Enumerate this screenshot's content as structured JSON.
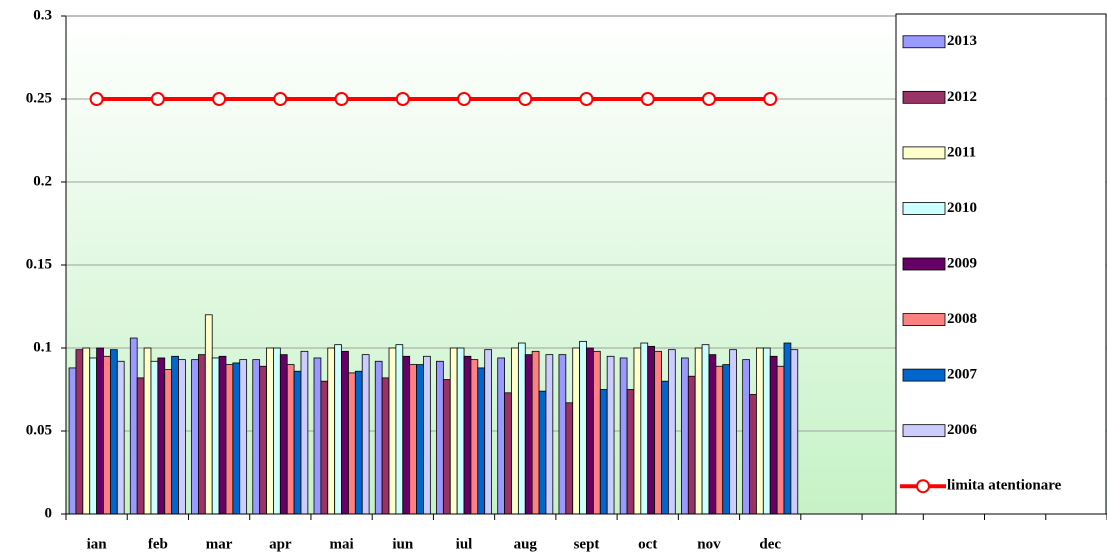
{
  "chart_data": {
    "type": "bar",
    "categories": [
      "ian",
      "feb",
      "mar",
      "apr",
      "mai",
      "iun",
      "iul",
      "aug",
      "sept",
      "oct",
      "nov",
      "dec",
      null,
      null,
      null,
      null,
      null
    ],
    "ylim": [
      0,
      0.3
    ],
    "yticks": [
      0,
      0.05,
      0.1,
      0.15,
      0.2,
      0.25,
      0.3
    ],
    "grid": true,
    "legend": "right",
    "series": [
      {
        "name": "2013",
        "color": "#9999ff",
        "values": [
          0.088,
          0.106,
          0.093,
          0.093,
          0.094,
          0.092,
          0.092,
          0.094,
          0.096,
          0.094,
          0.094,
          0.093,
          null,
          null,
          null,
          null,
          null
        ]
      },
      {
        "name": "2012",
        "color": "#993366",
        "values": [
          0.099,
          0.082,
          0.096,
          0.089,
          0.08,
          0.082,
          0.081,
          0.073,
          0.067,
          0.075,
          0.083,
          0.072,
          null,
          null,
          null,
          null,
          null
        ]
      },
      {
        "name": "2011",
        "color": "#ffffcc",
        "values": [
          0.1,
          0.1,
          0.12,
          0.1,
          0.1,
          0.1,
          0.1,
          0.1,
          0.1,
          0.1,
          0.1,
          0.1,
          null,
          null,
          null,
          null,
          null
        ]
      },
      {
        "name": "2010",
        "color": "#ccffff",
        "values": [
          0.094,
          0.092,
          0.094,
          0.1,
          0.102,
          0.102,
          0.1,
          0.103,
          0.104,
          0.103,
          0.102,
          0.1,
          null,
          null,
          null,
          null,
          null
        ]
      },
      {
        "name": "2009",
        "color": "#660066",
        "values": [
          0.1,
          0.094,
          0.095,
          0.096,
          0.098,
          0.095,
          0.095,
          0.096,
          0.1,
          0.101,
          0.096,
          0.095,
          null,
          null,
          null,
          null,
          null
        ]
      },
      {
        "name": "2008",
        "color": "#ff8080",
        "values": [
          0.095,
          0.087,
          0.09,
          0.09,
          0.085,
          0.09,
          0.093,
          0.098,
          0.098,
          0.098,
          0.089,
          0.089,
          null,
          null,
          null,
          null,
          null
        ]
      },
      {
        "name": "2007",
        "color": "#0066cc",
        "values": [
          0.099,
          0.095,
          0.091,
          0.086,
          0.086,
          0.09,
          0.088,
          0.074,
          0.075,
          0.08,
          0.09,
          0.103,
          null,
          null,
          null,
          null,
          null
        ]
      },
      {
        "name": "2006",
        "color": "#ccccff",
        "values": [
          0.092,
          0.093,
          0.093,
          0.098,
          0.096,
          0.095,
          0.099,
          0.096,
          0.095,
          0.099,
          0.099,
          0.099,
          null,
          null,
          null,
          null,
          null
        ]
      },
      {
        "name": "limita atentionare",
        "type": "line",
        "color": "#ff0000",
        "values": [
          0.25,
          0.25,
          0.25,
          0.25,
          0.25,
          0.25,
          0.25,
          0.25,
          0.25,
          0.25,
          0.25,
          0.25,
          null,
          null,
          null,
          null,
          null
        ]
      }
    ]
  }
}
